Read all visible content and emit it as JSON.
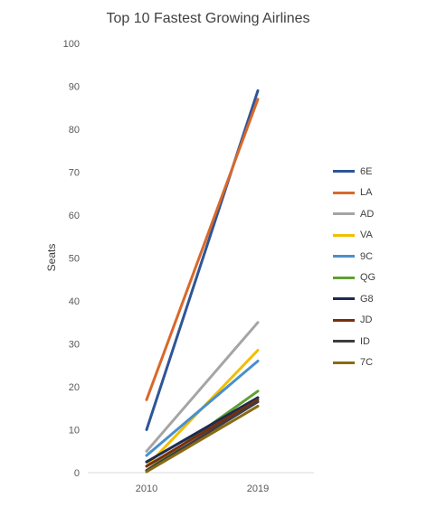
{
  "chart_data": {
    "type": "line",
    "title": "Top 10 Fastest Growing Airlines",
    "xlabel": "",
    "ylabel": "Seats",
    "categories": [
      "2010",
      "2019"
    ],
    "ylim": [
      0,
      100
    ],
    "yticks": [
      "0",
      "10",
      "20",
      "30",
      "40",
      "50",
      "60",
      "70",
      "80",
      "90",
      "100"
    ],
    "grid": false,
    "legend_position": "right",
    "series": [
      {
        "name": "6E",
        "color": "#2F5597",
        "values": [
          10,
          89
        ]
      },
      {
        "name": "LA",
        "color": "#D8692B",
        "values": [
          17,
          87
        ]
      },
      {
        "name": "AD",
        "color": "#A5A5A5",
        "values": [
          5,
          35
        ]
      },
      {
        "name": "VA",
        "color": "#F2BE00",
        "values": [
          1.5,
          28.5
        ]
      },
      {
        "name": "9C",
        "color": "#4A8FCB",
        "values": [
          4,
          26
        ]
      },
      {
        "name": "QG",
        "color": "#5FA032",
        "values": [
          0.5,
          19
        ]
      },
      {
        "name": "G8",
        "color": "#1C2B52",
        "values": [
          2.5,
          17.5
        ]
      },
      {
        "name": "JD",
        "color": "#7A2E0C",
        "values": [
          1.5,
          17
        ]
      },
      {
        "name": "ID",
        "color": "#3D3D3D",
        "values": [
          0.5,
          16.5
        ]
      },
      {
        "name": "7C",
        "color": "#8A6A14",
        "values": [
          0.2,
          15.5
        ]
      }
    ]
  }
}
